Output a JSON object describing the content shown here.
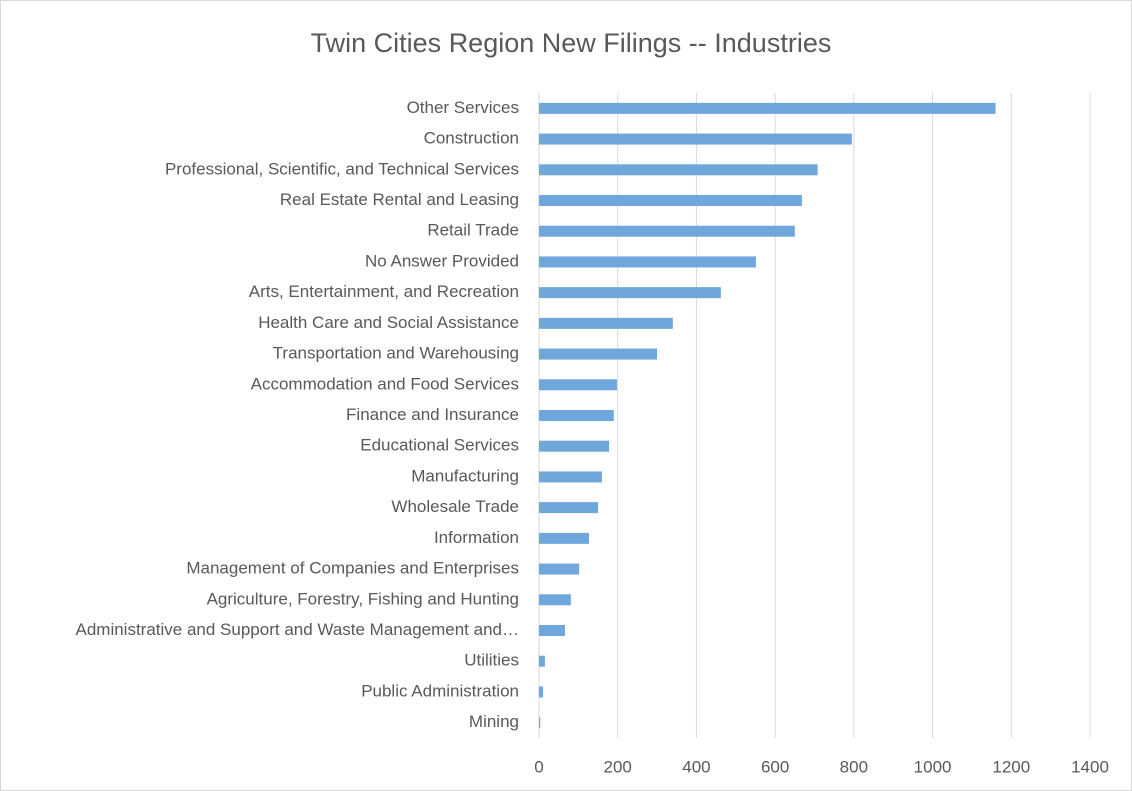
{
  "chart_data": {
    "type": "bar",
    "orientation": "horizontal",
    "title": "Twin Cities Region New Filings -- Industries",
    "categories": [
      "Other Services",
      "Construction",
      "Professional, Scientific, and Technical Services",
      "Real Estate Rental and Leasing",
      "Retail Trade",
      "No Answer Provided",
      "Arts, Entertainment, and Recreation",
      "Health Care and Social Assistance",
      "Transportation and Warehousing",
      "Accommodation and Food Services",
      "Finance and Insurance",
      "Educational Services",
      "Manufacturing",
      "Wholesale Trade",
      "Information",
      "Management of Companies and Enterprises",
      "Agriculture, Forestry, Fishing and Hunting",
      "Administrative and Support and Waste Management and…",
      "Utilities",
      "Public Administration",
      "Mining"
    ],
    "values": [
      1160,
      795,
      708,
      668,
      650,
      551,
      462,
      340,
      300,
      198,
      190,
      178,
      160,
      150,
      127,
      102,
      81,
      66,
      15,
      10,
      3
    ],
    "color": "#6fa6dc",
    "xlim": [
      0,
      1400
    ],
    "xticks": [
      0,
      200,
      400,
      600,
      800,
      1000,
      1200,
      1400
    ],
    "grid": true
  }
}
